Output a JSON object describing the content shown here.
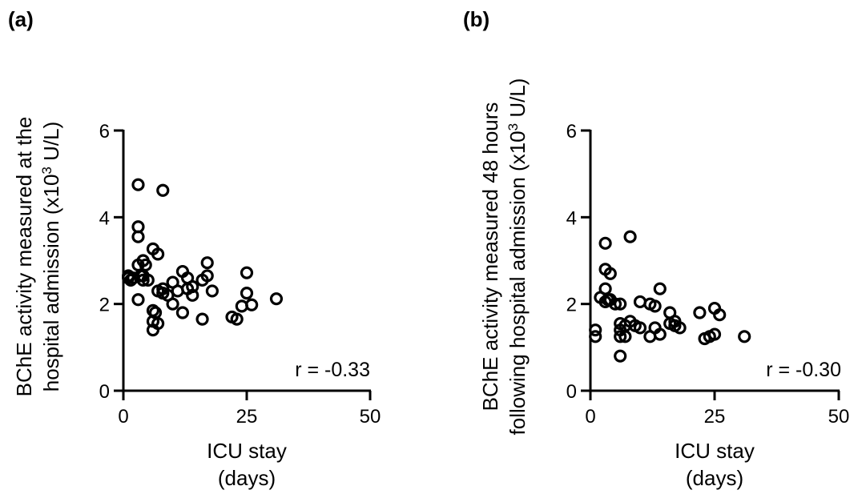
{
  "chart_data": [
    {
      "type": "scatter",
      "panel_label": "(a)",
      "ylabel_lines": [
        "BChE  activity measured at the",
        "hospital admission (x10",
        "3",
        " U/L)"
      ],
      "xlabel_lines": [
        "ICU stay",
        "(days)"
      ],
      "xlim": [
        0,
        50
      ],
      "ylim": [
        0,
        6
      ],
      "xticks": [
        0,
        25,
        50
      ],
      "yticks": [
        0,
        2,
        4,
        6
      ],
      "x_tick_labels": [
        "0",
        "25",
        "50"
      ],
      "y_tick_labels": [
        "0",
        "2",
        "4",
        "6"
      ],
      "annotation": "r = -0.33",
      "points": [
        [
          1,
          2.65
        ],
        [
          1,
          2.6
        ],
        [
          1.5,
          2.55
        ],
        [
          2,
          2.6
        ],
        [
          3,
          4.75
        ],
        [
          3,
          3.78
        ],
        [
          3,
          3.55
        ],
        [
          3,
          2.9
        ],
        [
          3,
          2.1
        ],
        [
          3.5,
          2.65
        ],
        [
          4,
          3.0
        ],
        [
          4,
          2.65
        ],
        [
          4,
          2.55
        ],
        [
          4.5,
          2.9
        ],
        [
          5,
          2.55
        ],
        [
          6,
          3.27
        ],
        [
          6,
          1.85
        ],
        [
          6,
          1.6
        ],
        [
          6,
          1.4
        ],
        [
          6.5,
          1.8
        ],
        [
          7,
          3.15
        ],
        [
          7,
          1.55
        ],
        [
          7,
          2.3
        ],
        [
          8,
          4.62
        ],
        [
          8,
          2.25
        ],
        [
          8,
          2.35
        ],
        [
          9,
          2.2
        ],
        [
          10,
          2.5
        ],
        [
          10,
          2.0
        ],
        [
          11,
          2.3
        ],
        [
          12,
          1.8
        ],
        [
          12,
          2.75
        ],
        [
          13,
          2.35
        ],
        [
          13,
          2.6
        ],
        [
          14,
          2.2
        ],
        [
          14,
          2.4
        ],
        [
          16,
          1.65
        ],
        [
          16,
          2.55
        ],
        [
          17,
          2.95
        ],
        [
          17,
          2.65
        ],
        [
          18,
          2.3
        ],
        [
          22,
          1.7
        ],
        [
          23,
          1.65
        ],
        [
          24,
          1.95
        ],
        [
          25,
          2.72
        ],
        [
          25,
          2.25
        ],
        [
          26,
          1.98
        ],
        [
          31,
          2.12
        ]
      ]
    },
    {
      "type": "scatter",
      "panel_label": "(b)",
      "ylabel_lines": [
        "BChE activity measured 48 hours",
        "following hospital admission (x10",
        "3",
        " U/L)"
      ],
      "xlabel_lines": [
        "ICU stay",
        "(days)"
      ],
      "xlim": [
        0,
        50
      ],
      "ylim": [
        0,
        6
      ],
      "xticks": [
        0,
        25,
        50
      ],
      "yticks": [
        0,
        2,
        4,
        6
      ],
      "x_tick_labels": [
        "0",
        "25",
        "50"
      ],
      "y_tick_labels": [
        "0",
        "2",
        "4",
        "6"
      ],
      "annotation": "r = -0.30",
      "points": [
        [
          1,
          1.4
        ],
        [
          1,
          1.25
        ],
        [
          2,
          2.15
        ],
        [
          3,
          3.4
        ],
        [
          3,
          2.8
        ],
        [
          3,
          2.35
        ],
        [
          3,
          2.05
        ],
        [
          3.5,
          2.1
        ],
        [
          4,
          2.7
        ],
        [
          4,
          2.1
        ],
        [
          5,
          2.0
        ],
        [
          6,
          2.0
        ],
        [
          6,
          1.55
        ],
        [
          6,
          1.4
        ],
        [
          6,
          1.25
        ],
        [
          6,
          0.8
        ],
        [
          7,
          1.5
        ],
        [
          7,
          1.25
        ],
        [
          8,
          3.55
        ],
        [
          8,
          1.6
        ],
        [
          9,
          1.5
        ],
        [
          10,
          2.05
        ],
        [
          10,
          1.45
        ],
        [
          12,
          2.0
        ],
        [
          12,
          1.25
        ],
        [
          13,
          1.95
        ],
        [
          13,
          1.45
        ],
        [
          14,
          2.35
        ],
        [
          14,
          1.3
        ],
        [
          16,
          1.8
        ],
        [
          16,
          1.55
        ],
        [
          17,
          1.6
        ],
        [
          17,
          1.5
        ],
        [
          18,
          1.45
        ],
        [
          22,
          1.8
        ],
        [
          23,
          1.2
        ],
        [
          24,
          1.25
        ],
        [
          25,
          1.9
        ],
        [
          25,
          1.3
        ],
        [
          26,
          1.75
        ],
        [
          31,
          1.25
        ]
      ]
    }
  ]
}
